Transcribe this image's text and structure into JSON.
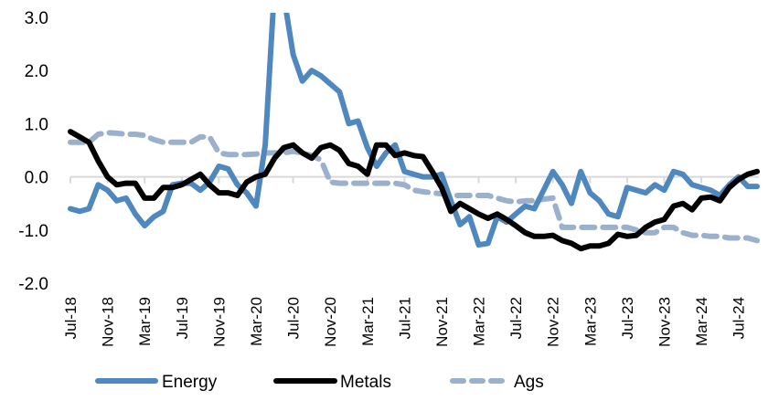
{
  "chart_data": {
    "type": "line",
    "title": "",
    "xlabel": "",
    "ylabel": "",
    "ylim": [
      -2.0,
      3.0
    ],
    "yticks": [
      "3.0",
      "2.0",
      "1.0",
      "0.0",
      "-1.0",
      "-2.0"
    ],
    "ytick_values": [
      3.0,
      2.0,
      1.0,
      0.0,
      -1.0,
      -2.0
    ],
    "xtick_labels": [
      "Jul-18",
      "Nov-18",
      "Mar-19",
      "Jul-19",
      "Nov-19",
      "Mar-20",
      "Jul-20",
      "Nov-20",
      "Mar-21",
      "Jul-21",
      "Nov-21",
      "Mar-22",
      "Jul-22",
      "Nov-22",
      "Mar-23",
      "Jul-23",
      "Nov-23",
      "Mar-24",
      "Jul-24"
    ],
    "x_start": "Jul-18",
    "x_end": "Jul-24",
    "x_frequency": "monthly",
    "zero_line": true,
    "grid": false,
    "legend_position": "bottom",
    "series": [
      {
        "name": "Energy",
        "color": "#4f88bf",
        "style": "solid",
        "values": [
          -0.6,
          -0.65,
          -0.6,
          -0.15,
          -0.25,
          -0.45,
          -0.4,
          -0.7,
          -0.92,
          -0.75,
          -0.65,
          -0.15,
          -0.12,
          -0.12,
          -0.25,
          -0.1,
          0.2,
          0.15,
          -0.15,
          -0.3,
          -0.55,
          0.6,
          3.6,
          3.4,
          2.3,
          1.8,
          2.0,
          1.9,
          1.75,
          1.6,
          1.0,
          1.05,
          0.55,
          0.2,
          0.45,
          0.6,
          0.1,
          0.05,
          0.0,
          0.0,
          0.05,
          -0.45,
          -0.9,
          -0.75,
          -1.28,
          -1.25,
          -0.75,
          -0.85,
          -0.7,
          -0.55,
          -0.6,
          -0.25,
          0.1,
          -0.15,
          -0.5,
          0.1,
          -0.3,
          -0.45,
          -0.7,
          -0.75,
          -0.2,
          -0.25,
          -0.3,
          -0.15,
          -0.25,
          0.1,
          0.05,
          -0.15,
          -0.2,
          -0.25,
          -0.35,
          -0.15,
          0.0,
          -0.18,
          -0.18
        ]
      },
      {
        "name": "Metals",
        "color": "#000000",
        "style": "solid",
        "values": [
          0.85,
          0.75,
          0.65,
          0.3,
          0.0,
          -0.15,
          -0.12,
          -0.12,
          -0.4,
          -0.4,
          -0.2,
          -0.2,
          -0.15,
          -0.05,
          0.05,
          -0.15,
          -0.3,
          -0.3,
          -0.35,
          -0.1,
          0.0,
          0.05,
          0.35,
          0.55,
          0.6,
          0.45,
          0.35,
          0.55,
          0.6,
          0.5,
          0.25,
          0.2,
          0.05,
          0.6,
          0.6,
          0.4,
          0.45,
          0.4,
          0.38,
          0.1,
          -0.2,
          -0.65,
          -0.5,
          -0.6,
          -0.7,
          -0.78,
          -0.7,
          -0.8,
          -0.92,
          -1.05,
          -1.12,
          -1.12,
          -1.1,
          -1.2,
          -1.25,
          -1.35,
          -1.3,
          -1.3,
          -1.25,
          -1.08,
          -1.12,
          -1.1,
          -0.95,
          -0.85,
          -0.8,
          -0.55,
          -0.5,
          -0.62,
          -0.4,
          -0.38,
          -0.45,
          -0.2,
          -0.05,
          0.05,
          0.1
        ]
      },
      {
        "name": "Ags",
        "color": "#9ab0cd",
        "style": "dashed",
        "values": [
          0.65,
          0.65,
          0.65,
          0.8,
          0.83,
          0.82,
          0.8,
          0.8,
          0.78,
          0.7,
          0.65,
          0.65,
          0.65,
          0.65,
          0.75,
          0.75,
          0.45,
          0.42,
          0.42,
          0.42,
          0.43,
          0.45,
          0.45,
          0.45,
          0.48,
          0.45,
          0.4,
          0.32,
          -0.1,
          -0.12,
          -0.12,
          -0.12,
          -0.12,
          -0.12,
          -0.12,
          -0.12,
          -0.15,
          -0.25,
          -0.28,
          -0.3,
          -0.32,
          -0.35,
          -0.35,
          -0.35,
          -0.35,
          -0.35,
          -0.4,
          -0.45,
          -0.47,
          -0.45,
          -0.45,
          -0.42,
          -0.4,
          -0.95,
          -0.95,
          -0.95,
          -0.95,
          -0.95,
          -0.95,
          -0.95,
          -0.95,
          -1.0,
          -1.05,
          -1.05,
          -0.95,
          -0.95,
          -1.05,
          -1.1,
          -1.1,
          -1.12,
          -1.12,
          -1.15,
          -1.15,
          -1.15,
          -1.2
        ]
      }
    ]
  }
}
